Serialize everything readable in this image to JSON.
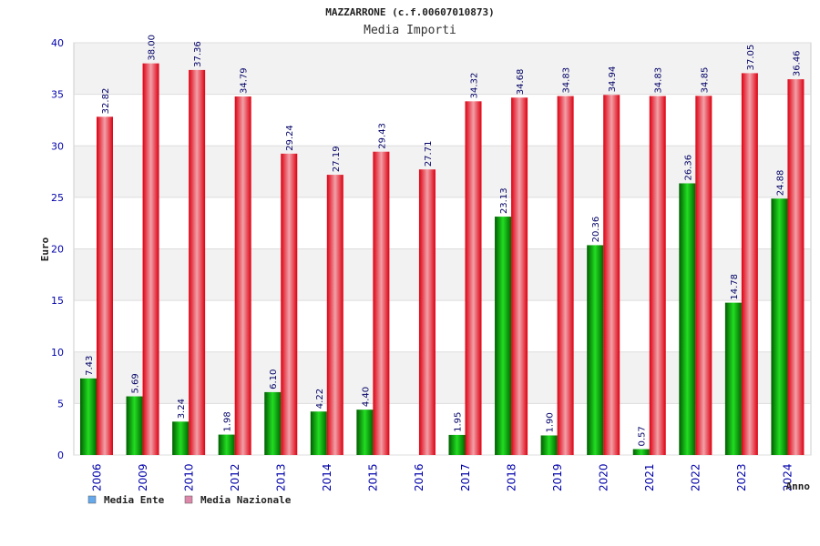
{
  "chart_data": {
    "type": "bar",
    "title": "MAZZARRONE (c.f.00607010873)",
    "subtitle": "Media Importi",
    "xlabel": "Anno",
    "ylabel": "Euro",
    "ylim": [
      0,
      40
    ],
    "yticks": [
      0,
      5,
      10,
      15,
      20,
      25,
      30,
      35,
      40
    ],
    "grid": true,
    "legend_position": "bottom-left",
    "categories": [
      "2006",
      "2009",
      "2010",
      "2012",
      "2013",
      "2014",
      "2015",
      "2016",
      "2017",
      "2018",
      "2019",
      "2020",
      "2021",
      "2022",
      "2023",
      "2024"
    ],
    "series": [
      {
        "name": "Media Ente",
        "values": [
          7.43,
          5.69,
          3.24,
          1.98,
          6.1,
          4.22,
          4.4,
          null,
          1.95,
          23.13,
          1.9,
          20.36,
          0.57,
          26.36,
          14.78,
          24.88
        ],
        "labels": [
          "7.43",
          "5.69",
          "3.24",
          "1.98",
          "6.10",
          "4.22",
          "4.40",
          "",
          "1.95",
          "23.13",
          "1.90",
          "20.36",
          "0.57",
          "26.36",
          "14.78",
          "24.88"
        ]
      },
      {
        "name": "Media Nazionale",
        "values": [
          32.82,
          38.0,
          37.36,
          34.79,
          29.24,
          27.19,
          29.43,
          27.71,
          34.32,
          34.68,
          34.83,
          34.94,
          34.83,
          34.85,
          37.05,
          36.46
        ],
        "labels": [
          "32.82",
          "38.00",
          "37.36",
          "34.79",
          "29.24",
          "27.19",
          "29.43",
          "27.71",
          "34.32",
          "34.68",
          "34.83",
          "34.94",
          "34.83",
          "34.85",
          "37.05",
          "36.46"
        ]
      }
    ],
    "colors": {
      "ente_bar": "#00bb00",
      "nazionale_bar": "#ee1122",
      "ente_legend": "#66aaee",
      "nazionale_legend": "#dd88aa",
      "band": "#f2f2f2",
      "axis_text": "#0000aa"
    }
  }
}
